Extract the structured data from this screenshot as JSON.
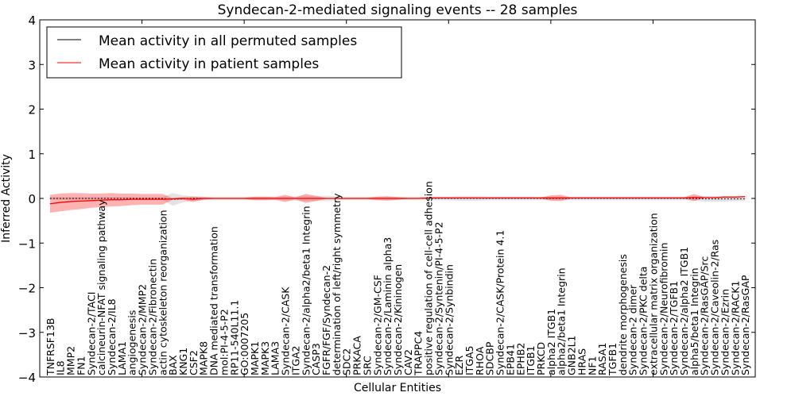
{
  "chart_data": {
    "type": "line",
    "title": "Syndecan-2-mediated signaling events -- 28 samples",
    "xlabel": "Cellular Entities",
    "ylabel": "Inferred Activity",
    "ylim": [
      -4,
      4
    ],
    "xlim": [
      0,
      70
    ],
    "yticks": [
      -4,
      -3,
      -2,
      -1,
      0,
      1,
      2,
      3,
      4
    ],
    "ytick_labels": [
      "−4",
      "−3",
      "−2",
      "−1",
      "0",
      "1",
      "2",
      "3",
      "4"
    ],
    "legend_placement": "top-left",
    "categories": [
      "TNFRSF13B",
      "IL8",
      "MMP2",
      "FN1",
      "Syndecan-2/TACI",
      "calcineurin-NFAT signaling pathway",
      "Syndecan-2/IL8",
      "LAMA1",
      "angiogenesis",
      "Syndecan-2/MMP2",
      "Syndecan-2/Fibronectin",
      "actin cytoskeleton reorganization",
      "BAX",
      "KNG1",
      "CSF2",
      "MAPK8",
      "DNA mediated transformation",
      "mol:PI-4-5-P2",
      "RP11-540L11.1",
      "GO:0007205",
      "MAPK1",
      "MAPK3",
      "LAMA3",
      "Syndecan-2/CASK",
      "ITGA2",
      "Syndecan-2/alpha2/beta1 Integrin",
      "CASP3",
      "FGFR/FGF/Syndecan-2",
      "determination of left/right symmetry",
      "SDC2",
      "PRKACA",
      "SRC",
      "Syndecan-2/GM-CSF",
      "Syndecan-2/Laminin alpha3",
      "Syndecan-2/Kininogen",
      "CAV2",
      "TRAPPC4",
      "positive regulation of cell-cell adhesion",
      "Syndecan-2/Syntenin/PI-4-5-P2",
      "Syndecan-2/Synbindin",
      "EZR",
      "ITGA5",
      "RHOA",
      "SDCBP",
      "Syndecan-2/CASK/Protein 4.1",
      "EPB41",
      "EPHB2",
      "ITGB1",
      "PRKCD",
      "alpha2 ITGB1",
      "alpha2/beta1 Integrin",
      "GNB2L1",
      "HRAS",
      "NF1",
      "RASA1",
      "TGFB1",
      "dendrite morphogenesis",
      "Syndecan-2 dimer",
      "Syndecan-2/PKC delta",
      "extracellular matrix organization",
      "Syndecan-2/Neurofibromin",
      "Syndecan-2/TGFB1",
      "Syndecan-2/alpha2 ITGB1",
      "alpha5/beta1 Integrin",
      "Syndecan-2/RasGAP/Src",
      "Syndecan-2/Caveolin-2/Ras",
      "Syndecan-2/Ezrin",
      "Syndecan-2/RACK1",
      "Syndecan-2/RasGAP"
    ],
    "series": [
      {
        "name": "Mean activity in all permuted samples",
        "color": "#000000",
        "values": [
          0,
          0,
          0,
          0,
          0,
          0,
          0,
          0,
          0,
          0,
          0,
          0,
          -0.02,
          -0.01,
          0,
          0,
          0,
          0,
          0,
          0,
          0,
          0,
          0,
          0,
          0,
          0,
          0,
          0,
          0,
          0,
          0,
          0,
          0,
          0,
          0,
          0,
          0,
          0,
          0,
          0,
          0,
          0,
          0,
          0,
          0,
          0,
          0,
          0,
          0,
          0,
          0,
          0,
          0,
          0,
          0,
          0,
          0,
          0,
          0,
          0,
          0,
          0,
          0,
          0,
          -0.01,
          -0.01,
          -0.01,
          -0.01,
          -0.01
        ],
        "band": [
          0.03,
          0.03,
          0.03,
          0.03,
          0.03,
          0.03,
          0.03,
          0.03,
          0.03,
          0.03,
          0.03,
          0.03,
          0.14,
          0.08,
          0.05,
          0.04,
          0.04,
          0.04,
          0.04,
          0.04,
          0.04,
          0.04,
          0.04,
          0.04,
          0.05,
          0.06,
          0.05,
          0.06,
          0.05,
          0.04,
          0.04,
          0.04,
          0.04,
          0.04,
          0.04,
          0.04,
          0.04,
          0.04,
          0.04,
          0.04,
          0.05,
          0.05,
          0.05,
          0.04,
          0.04,
          0.04,
          0.04,
          0.04,
          0.04,
          0.04,
          0.04,
          0.04,
          0.04,
          0.04,
          0.04,
          0.04,
          0.04,
          0.04,
          0.04,
          0.04,
          0.04,
          0.04,
          0.04,
          0.05,
          0.06,
          0.06,
          0.06,
          0.05,
          0.05
        ],
        "band_color": "#c8c8c8"
      },
      {
        "name": "Mean activity in patient samples",
        "color": "#ff0000",
        "values": [
          -0.12,
          -0.09,
          -0.07,
          -0.06,
          -0.05,
          -0.04,
          -0.03,
          -0.03,
          -0.02,
          -0.02,
          -0.02,
          -0.02,
          -0.01,
          0,
          -0.02,
          0,
          0,
          0,
          0,
          0,
          0,
          0,
          0,
          0,
          0,
          0,
          0,
          0,
          0,
          0,
          0,
          0,
          0,
          0,
          0,
          0,
          0,
          0.01,
          0.01,
          0.01,
          0.01,
          0.01,
          0.01,
          0.01,
          0.01,
          0.01,
          0.01,
          0.01,
          0.01,
          0.01,
          0.01,
          0.01,
          0.01,
          0.01,
          0.01,
          0.01,
          0.01,
          0.01,
          0.01,
          0.01,
          0.01,
          0.01,
          0.01,
          0.02,
          0.02,
          0.02,
          0.03,
          0.03,
          0.04
        ],
        "band": [
          0.2,
          0.2,
          0.19,
          0.18,
          0.16,
          0.15,
          0.15,
          0.14,
          0.13,
          0.12,
          0.12,
          0.12,
          0.02,
          0.03,
          0.06,
          0.03,
          0.01,
          0.01,
          0.01,
          0.01,
          0.04,
          0.04,
          0.03,
          0.08,
          0.02,
          0.1,
          0.06,
          0.01,
          0.01,
          0.01,
          0.01,
          0.01,
          0.04,
          0.05,
          0.03,
          0.01,
          0.01,
          0.01,
          0.01,
          0.01,
          0.01,
          0.01,
          0.01,
          0.01,
          0.01,
          0.01,
          0.01,
          0.01,
          0.01,
          0.06,
          0.07,
          0.01,
          0.01,
          0.01,
          0.01,
          0.01,
          0.01,
          0.01,
          0.01,
          0.01,
          0.01,
          0.01,
          0.01,
          0.08,
          0.01,
          0.01,
          0.01,
          0.01,
          0.01
        ],
        "band_color": "#ff0000"
      }
    ]
  }
}
